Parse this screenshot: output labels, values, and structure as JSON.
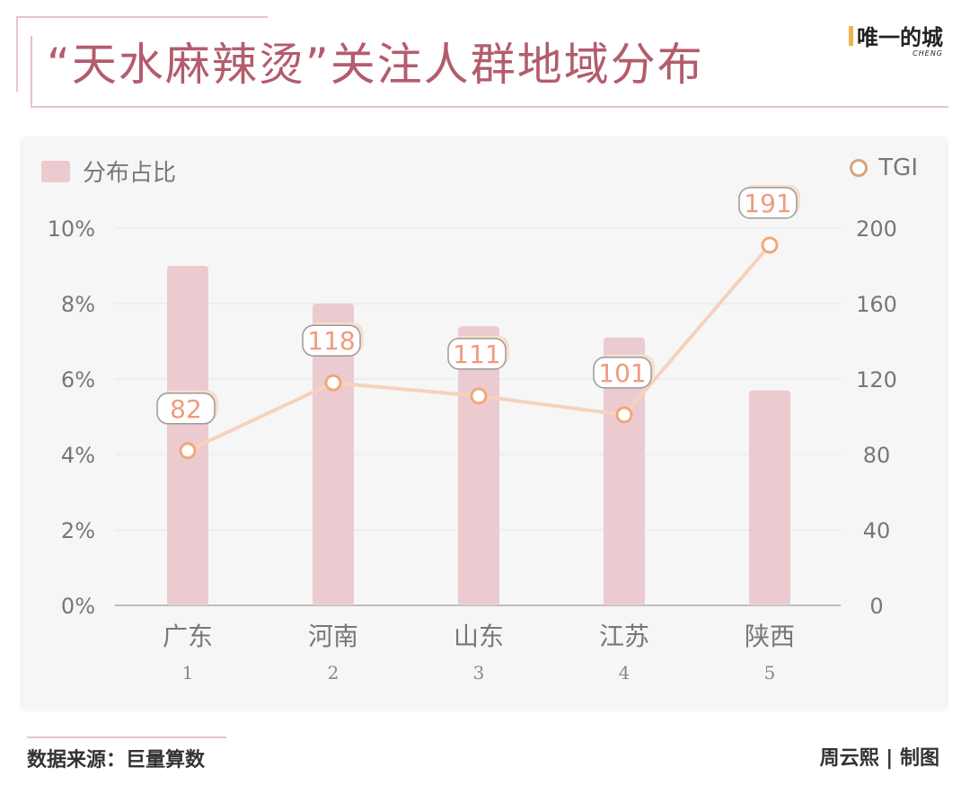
{
  "header": {
    "title": "“天水麻辣烫”关注人群地域分布",
    "logo_text": "唯一的城",
    "logo_sub": "CHENG"
  },
  "footer": {
    "source": "数据来源：巨量算数",
    "credit": "周云熙 | 制图"
  },
  "colors": {
    "bar": "#ebcbcf",
    "line": "#f5d2bd",
    "marker_stroke": "#f0a878",
    "label_text": "#f09a80",
    "title": "#b35c6c"
  },
  "chart_data": {
    "type": "bar",
    "categories": [
      "广东",
      "河南",
      "山东",
      "江苏",
      "陕西"
    ],
    "category_index": [
      "1",
      "2",
      "3",
      "4",
      "5"
    ],
    "series": [
      {
        "name": "分布占比",
        "type": "bar",
        "axis": "left",
        "values": [
          9.0,
          8.0,
          7.4,
          7.1,
          5.7
        ]
      },
      {
        "name": "TGI",
        "type": "line",
        "axis": "right",
        "values": [
          82,
          118,
          111,
          101,
          191
        ],
        "labels": [
          "82",
          "118",
          "111",
          "101",
          "191"
        ]
      }
    ],
    "left_axis": {
      "ticks": [
        "0%",
        "2%",
        "4%",
        "6%",
        "8%",
        "10%"
      ],
      "ylim": [
        0,
        10
      ]
    },
    "right_axis": {
      "ticks": [
        "0",
        "40",
        "80",
        "120",
        "160",
        "200"
      ],
      "ylim": [
        0,
        200
      ]
    },
    "legend": {
      "bar": "分布占比",
      "line": "TGI"
    },
    "grid": true
  }
}
